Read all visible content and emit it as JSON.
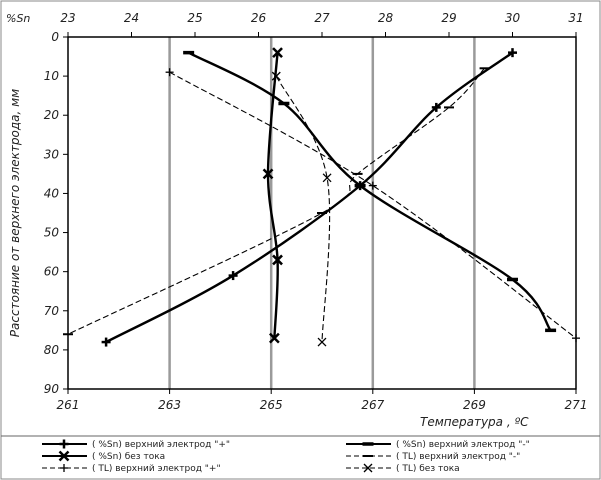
{
  "chart_data": {
    "type": "line",
    "title": "",
    "corner_label": "%Sn",
    "xlabel": "Температура , ºC",
    "ylabel": "Расстояние от верхнего электрода, мм",
    "x_temperature": {
      "lim": [
        261,
        271
      ],
      "ticks": [
        "261",
        "263",
        "265",
        "267",
        "269",
        "271"
      ],
      "position": "bottom"
    },
    "x_sn_percent": {
      "lim": [
        23,
        31
      ],
      "ticks": [
        "23",
        "24",
        "25",
        "26",
        "27",
        "28",
        "29",
        "30",
        "31"
      ],
      "position": "top"
    },
    "y": {
      "lim": [
        0,
        90
      ],
      "inverted": true,
      "ticks": [
        "0",
        "10",
        "20",
        "30",
        "40",
        "50",
        "60",
        "70",
        "80",
        "90"
      ]
    },
    "grid": "vertical",
    "legend_position": "bottom",
    "series": [
      {
        "name": "( %Sn) верхний электрод \"+\"",
        "x_axis": "x_sn_percent",
        "line": "solid",
        "marker": "plus",
        "points": [
          {
            "x": 23.6,
            "y": 78
          },
          {
            "x": 25.6,
            "y": 61
          },
          {
            "x": 27.6,
            "y": 38
          },
          {
            "x": 28.8,
            "y": 18
          },
          {
            "x": 30.0,
            "y": 4
          }
        ]
      },
      {
        "name": "( %Sn) верхний электрод \"-\"",
        "x_axis": "x_sn_percent",
        "line": "solid",
        "marker": "dash",
        "points": [
          {
            "x": 24.9,
            "y": 4
          },
          {
            "x": 26.4,
            "y": 17
          },
          {
            "x": 27.6,
            "y": 38
          },
          {
            "x": 30.0,
            "y": 62
          },
          {
            "x": 30.6,
            "y": 75
          }
        ]
      },
      {
        "name": "( %Sn) без тока",
        "x_axis": "x_sn_percent",
        "line": "solid",
        "marker": "x",
        "points": [
          {
            "x": 26.3,
            "y": 4
          },
          {
            "x": 26.15,
            "y": 35
          },
          {
            "x": 26.3,
            "y": 57
          },
          {
            "x": 26.25,
            "y": 77
          }
        ]
      },
      {
        "name": "( TL) верхний электрод \"-\"",
        "x_axis": "x_temperature",
        "line": "dashed",
        "marker": "dash",
        "points": [
          {
            "x": 269.2,
            "y": 8
          },
          {
            "x": 268.5,
            "y": 18
          },
          {
            "x": 266.7,
            "y": 35
          },
          {
            "x": 266.0,
            "y": 45
          },
          {
            "x": 261.0,
            "y": 76
          }
        ]
      },
      {
        "name": "( TL) верхний электрод \"+\"",
        "x_axis": "x_temperature",
        "line": "dashed",
        "marker": "plus",
        "points": [
          {
            "x": 263.0,
            "y": 9
          },
          {
            "x": 267.0,
            "y": 38
          },
          {
            "x": 271.0,
            "y": 77
          }
        ]
      },
      {
        "name": "( TL) без тока",
        "x_axis": "x_temperature",
        "line": "dashed",
        "marker": "x",
        "points": [
          {
            "x": 265.1,
            "y": 10
          },
          {
            "x": 266.1,
            "y": 36
          },
          {
            "x": 266.0,
            "y": 78
          }
        ]
      }
    ]
  }
}
